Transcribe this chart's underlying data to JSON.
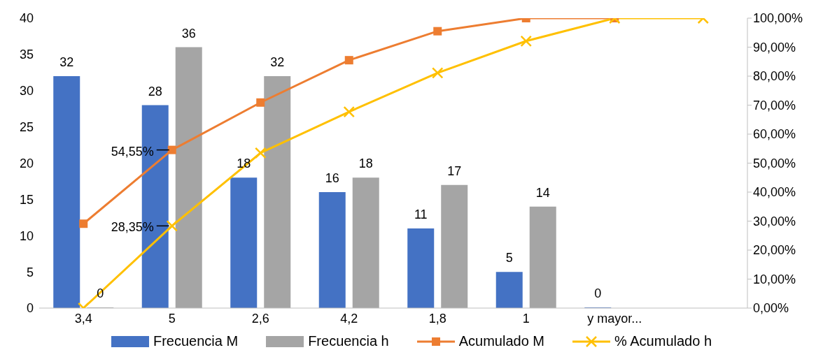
{
  "chart_data": {
    "type": "bar",
    "categories": [
      "3,4",
      "5",
      "2,6",
      "4,2",
      "1,8",
      "1",
      "y mayor...",
      null
    ],
    "series": [
      {
        "name": "Frecuencia M",
        "color": "#4472c4",
        "values": [
          32,
          28,
          18,
          16,
          11,
          5,
          0,
          null
        ],
        "value_labels": [
          "32",
          "28",
          "18",
          "16",
          "11",
          "5",
          "0",
          null
        ]
      },
      {
        "name": "Frecuencia h",
        "color": "#a5a5a5",
        "values": [
          0,
          36,
          32,
          18,
          17,
          14,
          null,
          null
        ],
        "value_labels": [
          "0",
          "36",
          "32",
          "18",
          "17",
          "14",
          null,
          null
        ]
      },
      {
        "name": "Acumulado M",
        "type": "line",
        "axis": "y2",
        "marker": "square",
        "color": "#ed7d31",
        "values": [
          29.1,
          54.55,
          70.9,
          85.5,
          95.5,
          100,
          100,
          null
        ],
        "value_labels": [
          null,
          "54,55%",
          null,
          null,
          null,
          null,
          null,
          null
        ]
      },
      {
        "name": "% Acumulado h",
        "type": "line",
        "axis": "y2",
        "marker": "cross",
        "color": "#ffc000",
        "values": [
          0,
          28.35,
          53.5,
          67.7,
          81.1,
          92.1,
          100,
          100
        ],
        "value_labels": [
          null,
          "28,35%",
          null,
          null,
          null,
          null,
          null,
          null
        ]
      }
    ],
    "ylim": [
      0,
      40
    ],
    "yticks": [
      0,
      5,
      10,
      15,
      20,
      25,
      30,
      35,
      40
    ],
    "y2lim": [
      0,
      100
    ],
    "y2ticks": [
      {
        "value": 0,
        "label": "0,00%"
      },
      {
        "value": 10,
        "label": "10,00%"
      },
      {
        "value": 20,
        "label": "20,00%"
      },
      {
        "value": 30,
        "label": "30,00%"
      },
      {
        "value": 40,
        "label": "40,00%"
      },
      {
        "value": 50,
        "label": "50,00%"
      },
      {
        "value": 60,
        "label": "60,00%"
      },
      {
        "value": 70,
        "label": "70,00%"
      },
      {
        "value": 80,
        "label": "80,00%"
      },
      {
        "value": 90,
        "label": "90,00%"
      },
      {
        "value": 100,
        "label": "100,00%"
      }
    ],
    "grid": false,
    "legend": "bottom"
  }
}
